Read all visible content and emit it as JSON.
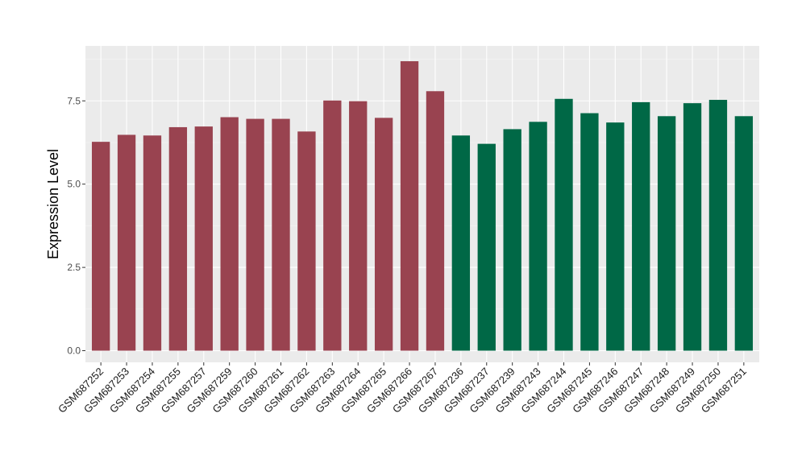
{
  "chart_data": {
    "type": "bar",
    "ylabel": "Expression Level",
    "xlabel": "",
    "ylim": [
      -0.35,
      9.15
    ],
    "yticks": [
      0.0,
      2.5,
      5.0,
      7.5
    ],
    "ytick_labels": [
      "0.0",
      "2.5",
      "5.0",
      "7.5"
    ],
    "grid": true,
    "legend": "none",
    "categories": [
      "GSM687252",
      "GSM687253",
      "GSM687254",
      "GSM687255",
      "GSM687257",
      "GSM687259",
      "GSM687260",
      "GSM687261",
      "GSM687262",
      "GSM687263",
      "GSM687264",
      "GSM687265",
      "GSM687266",
      "GSM687267",
      "GSM687236",
      "GSM687237",
      "GSM687239",
      "GSM687243",
      "GSM687244",
      "GSM687245",
      "GSM687246",
      "GSM687247",
      "GSM687248",
      "GSM687249",
      "GSM687250",
      "GSM687251"
    ],
    "values": [
      6.27,
      6.48,
      6.46,
      6.71,
      6.73,
      7.01,
      6.96,
      6.96,
      6.58,
      7.51,
      7.49,
      6.99,
      8.69,
      7.79,
      6.46,
      6.21,
      6.65,
      6.87,
      7.56,
      7.13,
      6.85,
      7.46,
      7.04,
      7.43,
      7.53,
      7.04
    ],
    "group_sizes": [
      14,
      12
    ],
    "colors": [
      "#994350",
      "#006846"
    ]
  },
  "colors": {
    "panel_background": "#ebebeb",
    "grid_major": "#ffffff",
    "grid_minor": "#f5f5f5"
  }
}
